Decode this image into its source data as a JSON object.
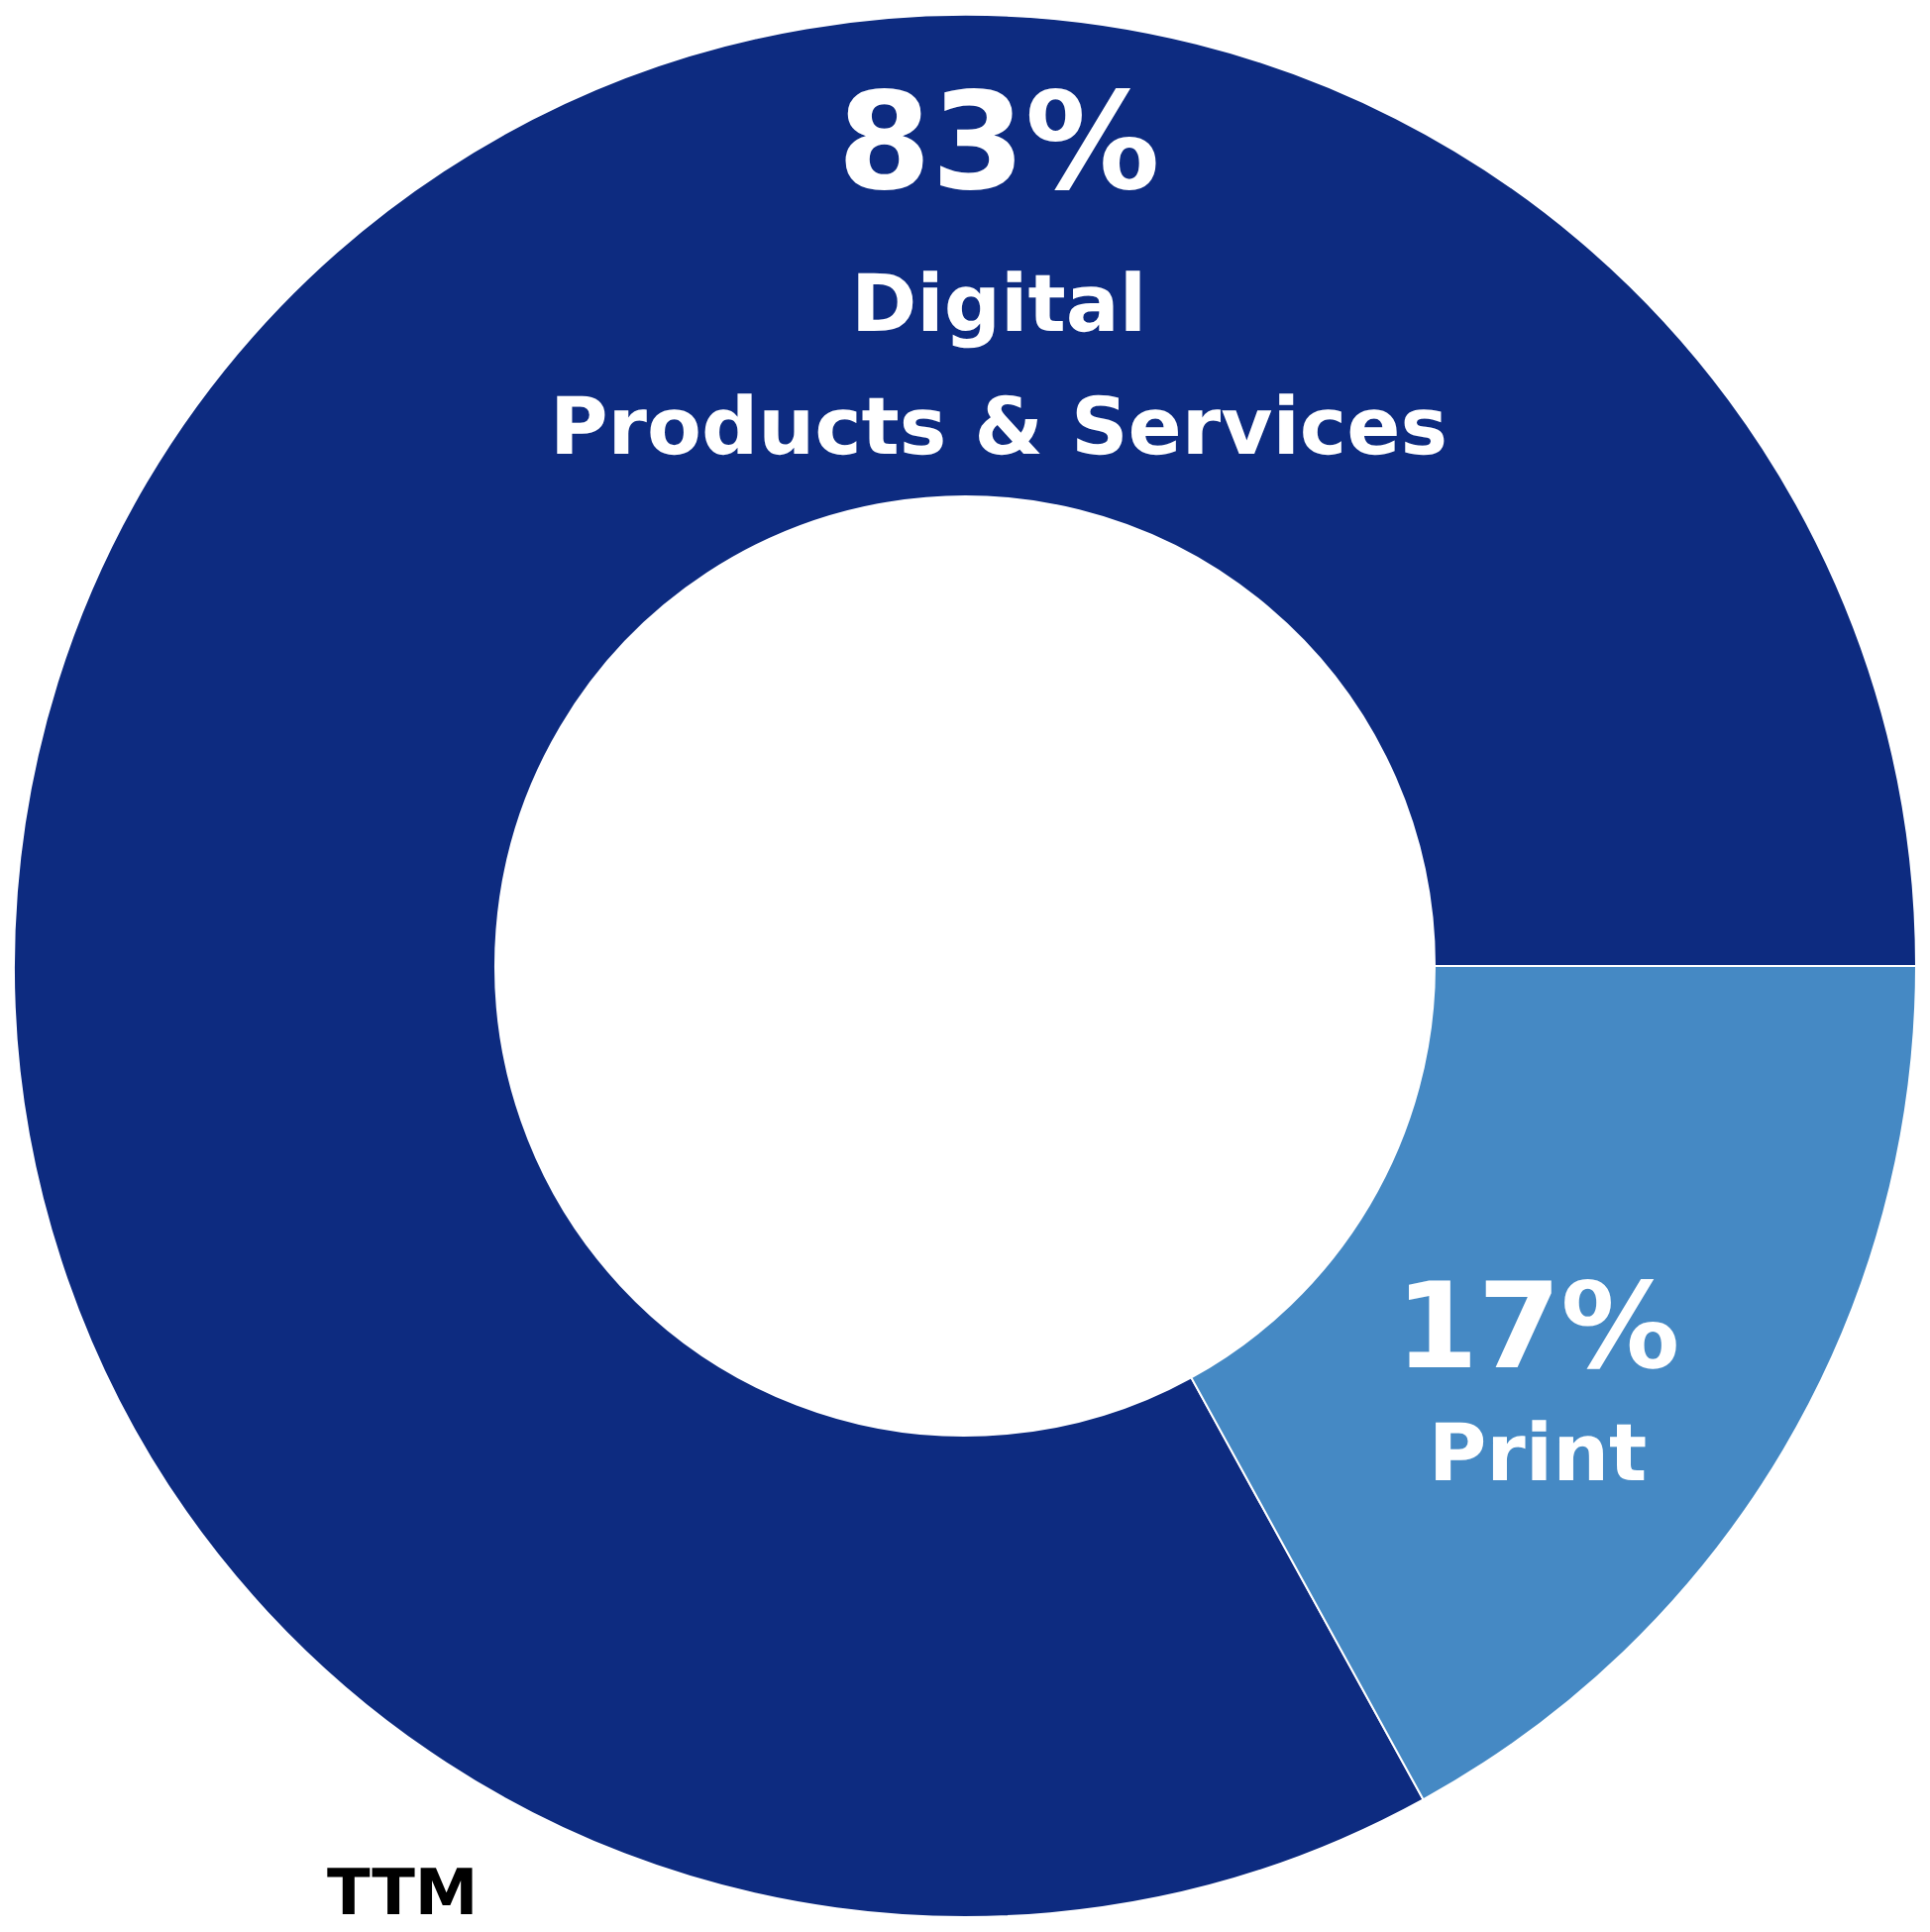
{
  "chart_data": {
    "type": "donut",
    "categories": [
      "Digital Products & Services",
      "Print"
    ],
    "values": [
      83,
      17
    ],
    "colors": [
      "#0d2b80",
      "#4589c4"
    ],
    "value_labels": [
      "83%",
      "17%"
    ],
    "annotations": [
      "TTM"
    ]
  }
}
